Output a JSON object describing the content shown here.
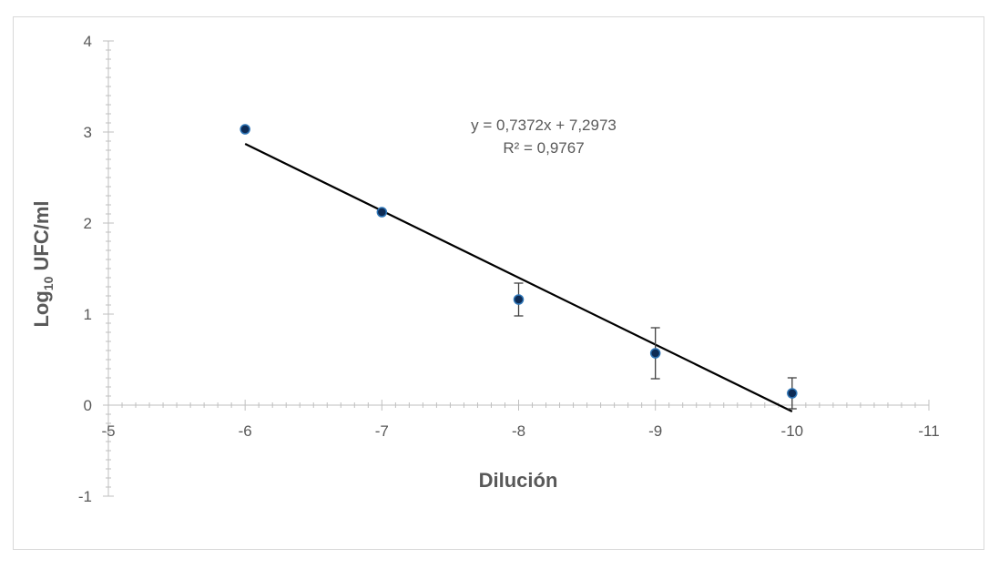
{
  "chart_data": {
    "type": "scatter",
    "xlabel": "Dilución",
    "ylabel_main": "Log",
    "ylabel_sub": "10",
    "ylabel_rest": " UFC/ml",
    "xlim": [
      -5,
      -11
    ],
    "ylim": [
      -1,
      4
    ],
    "x_ticks": [
      -5,
      -6,
      -7,
      -8,
      -9,
      -10,
      -11
    ],
    "y_ticks": [
      -1,
      0,
      1,
      2,
      3,
      4
    ],
    "x_tick_labels": [
      "-5",
      "-6",
      "-7",
      "-8",
      "-9",
      "-10",
      "-11"
    ],
    "y_tick_labels": [
      "-1",
      "0",
      "1",
      "2",
      "3",
      "4"
    ],
    "points": [
      {
        "x": -6,
        "y": 3.03,
        "err": 0
      },
      {
        "x": -7,
        "y": 2.12,
        "err": 0
      },
      {
        "x": -8,
        "y": 1.16,
        "err": 0.18
      },
      {
        "x": -9,
        "y": 0.57,
        "err": 0.28
      },
      {
        "x": -10,
        "y": 0.13,
        "err": 0.17
      }
    ],
    "trendline": {
      "x_start": -6,
      "y_start": 2.87,
      "x_end": -10,
      "y_end": -0.07,
      "equation": "y = 0,7372x + 7,2973",
      "r_squared": "R² = 0,9767"
    },
    "grid": false,
    "legend": "none",
    "colors": {
      "marker_fill": "#0d2b55",
      "marker_edge": "#2e75b6",
      "trendline": "#000000",
      "axis": "#bfbfbf",
      "text": "#595959"
    }
  }
}
